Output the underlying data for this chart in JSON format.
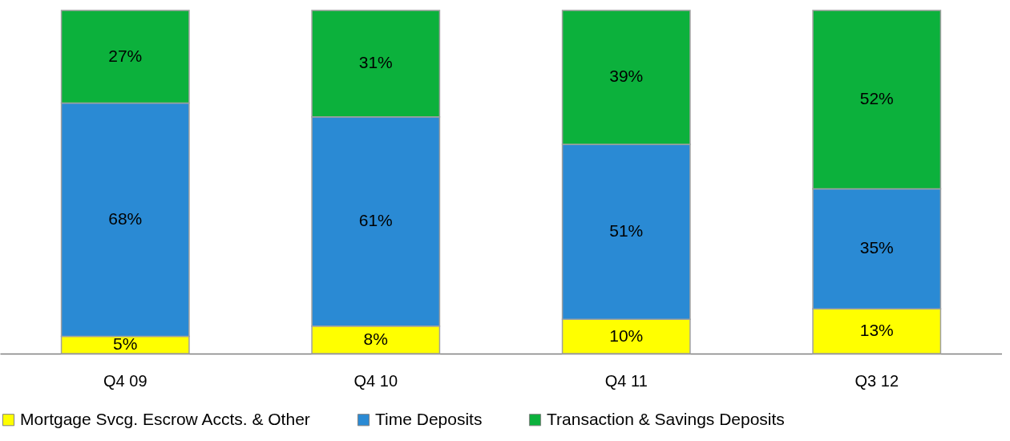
{
  "chart_data": {
    "type": "bar",
    "stacked": true,
    "categories": [
      "Q4 09",
      "Q4 10",
      "Q4 11",
      "Q3 12"
    ],
    "legend": "bottom",
    "grid": false,
    "series": [
      {
        "name": "Mortgage Svcg. Escrow Accts. & Other",
        "color": "#ffff00",
        "values": [
          5,
          8,
          10,
          13
        ],
        "value_labels": [
          "5%",
          "8%",
          "10%",
          "13%"
        ]
      },
      {
        "name": "Time Deposits",
        "color": "#2a8ad4",
        "values": [
          68,
          61,
          51,
          35
        ],
        "value_labels": [
          "68%",
          "61%",
          "51%",
          "35%"
        ]
      },
      {
        "name": "Transaction & Savings Deposits",
        "color": "#0cb13c",
        "values": [
          27,
          31,
          39,
          52
        ],
        "value_labels": [
          "27%",
          "31%",
          "39%",
          "52%"
        ]
      }
    ]
  }
}
